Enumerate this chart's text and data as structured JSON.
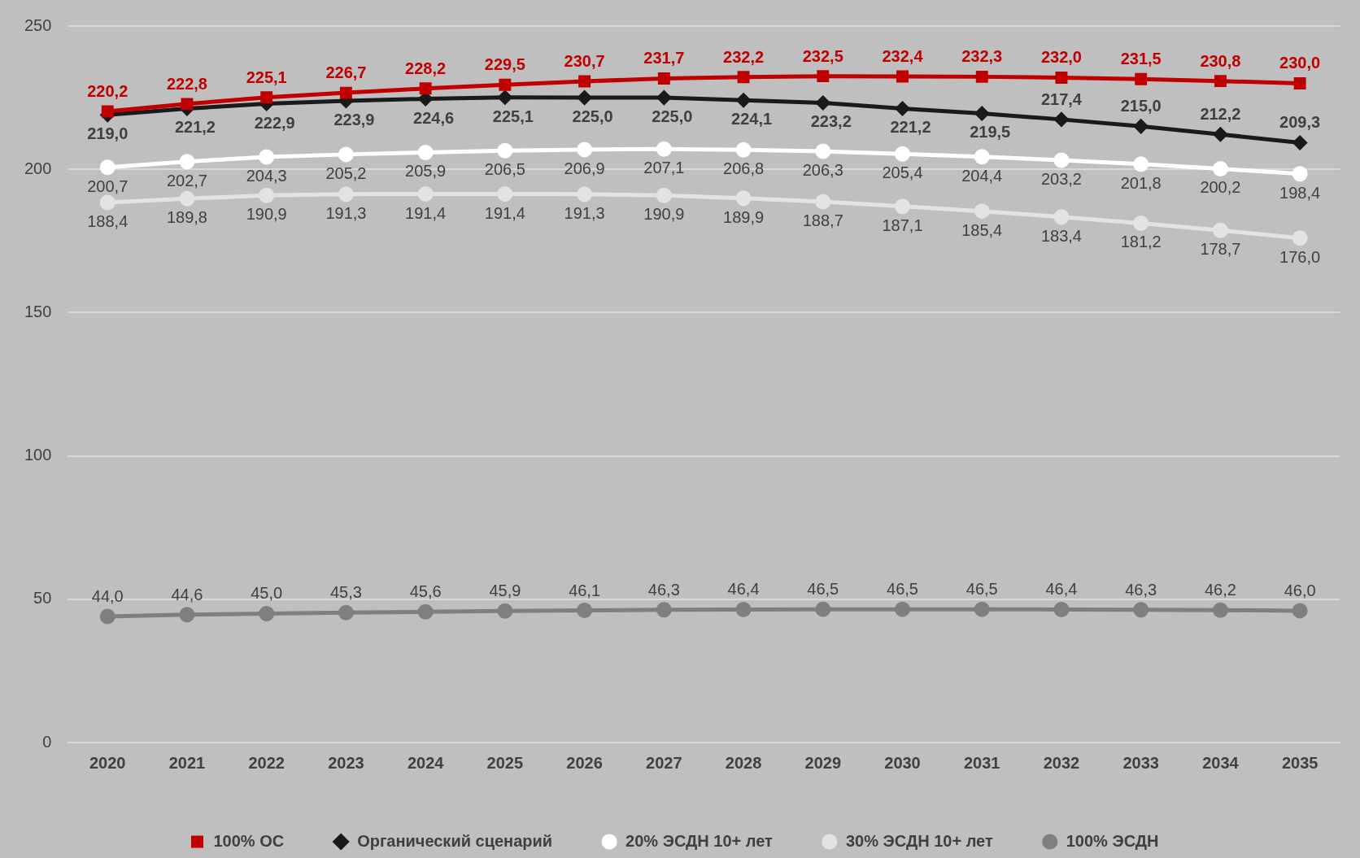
{
  "chart_data": {
    "type": "line",
    "categories": [
      "2020",
      "2021",
      "2022",
      "2023",
      "2024",
      "2025",
      "2026",
      "2027",
      "2028",
      "2029",
      "2030",
      "2031",
      "2032",
      "2033",
      "2034",
      "2035"
    ],
    "series": [
      {
        "name": "100% ОС",
        "color": "#c00000",
        "marker": "square",
        "values": [
          220.2,
          222.8,
          225.1,
          226.7,
          228.2,
          229.5,
          230.7,
          231.7,
          232.2,
          232.5,
          232.4,
          232.3,
          232.0,
          231.5,
          230.8,
          230.0
        ],
        "value_labels": [
          "220,2",
          "222,8",
          "225,1",
          "226,7",
          "228,2",
          "229,5",
          "230,7",
          "231,7",
          "232,2",
          "232,5",
          "232,4",
          "232,3",
          "232,0",
          "231,5",
          "230,8",
          "230,0"
        ]
      },
      {
        "name": "Органический сценарий",
        "color": "#1a1a1a",
        "marker": "diamond",
        "values": [
          219.0,
          221.2,
          222.9,
          223.9,
          224.6,
          225.1,
          225.0,
          225.0,
          224.1,
          223.2,
          221.2,
          219.5,
          217.4,
          215.0,
          212.2,
          209.3
        ],
        "value_labels": [
          "219,0",
          "221,2",
          "222,9",
          "223,9",
          "224,6",
          "225,1",
          "225,0",
          "225,0",
          "224,1",
          "223,2",
          "221,2",
          "219,5",
          "217,4",
          "215,0",
          "212,2",
          "209,3"
        ]
      },
      {
        "name": "20% ЭСДН 10+ лет",
        "color": "#ffffff",
        "marker": "circle",
        "values": [
          200.7,
          202.7,
          204.3,
          205.2,
          205.9,
          206.5,
          206.9,
          207.1,
          206.8,
          206.3,
          205.4,
          204.4,
          203.2,
          201.8,
          200.2,
          198.4
        ],
        "value_labels": [
          "200,7",
          "202,7",
          "204,3",
          "205,2",
          "205,9",
          "206,5",
          "206,9",
          "207,1",
          "206,8",
          "206,3",
          "205,4",
          "204,4",
          "203,2",
          "201,8",
          "200,2",
          "198,4"
        ]
      },
      {
        "name": "30% ЭСДН 10+ лет",
        "color": "#e3e3e3",
        "marker": "circle",
        "values": [
          188.4,
          189.8,
          190.9,
          191.3,
          191.4,
          191.4,
          191.3,
          190.9,
          189.9,
          188.7,
          187.1,
          185.4,
          183.4,
          181.2,
          178.7,
          176.0
        ],
        "value_labels": [
          "188,4",
          "189,8",
          "190,9",
          "191,3",
          "191,4",
          "191,4",
          "191,3",
          "190,9",
          "189,9",
          "188,7",
          "187,1",
          "185,4",
          "183,4",
          "181,2",
          "178,7",
          "176,0"
        ]
      },
      {
        "name": "100% ЭСДН",
        "color": "#7f7f7f",
        "marker": "circle",
        "values": [
          44.0,
          44.6,
          45.0,
          45.3,
          45.6,
          45.9,
          46.1,
          46.3,
          46.4,
          46.5,
          46.5,
          46.5,
          46.4,
          46.3,
          46.2,
          46.0
        ],
        "value_labels": [
          "44,0",
          "44,6",
          "45,0",
          "45,3",
          "45,6",
          "45,9",
          "46,1",
          "46,3",
          "46,4",
          "46,5",
          "46,5",
          "46,5",
          "46,4",
          "46,3",
          "46,2",
          "46,0"
        ]
      }
    ],
    "ylim": [
      0,
      250
    ],
    "yticks": [
      0,
      50,
      100,
      150,
      200,
      250
    ],
    "grid": "y",
    "legend": "bottom"
  }
}
